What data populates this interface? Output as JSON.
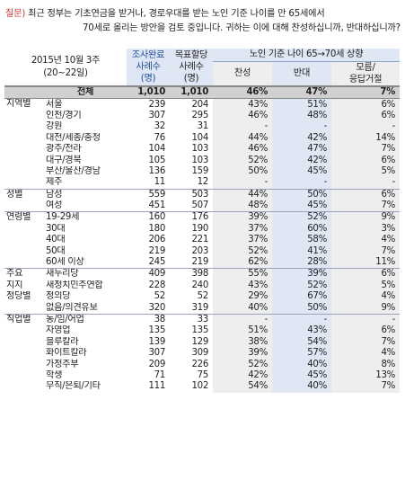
{
  "question": {
    "label": "질문)",
    "line1": "최근 정부는 기초연금을 받거나, 경로우대를 받는 노인 기준 나이를 만 65세에서",
    "line2": "70세로 올리는 방안을 검토 중입니다. 귀하는 이에 대해 찬성하십니까, 반대하십니까?"
  },
  "header": {
    "period_line1": "2015년 10월 3주",
    "period_line2": "(20~22일)",
    "survey_col": "조사완료\n사례수\n(명)",
    "weighted_col": "목표할당\n사례수\n(명)",
    "group_title": "노인 기준 나이 65→70세 상향",
    "agree": "찬성",
    "oppose": "반대",
    "dk": "모름/\n응답거절"
  },
  "rows": [
    {
      "grp": "",
      "label": "전체",
      "n1": "1,010",
      "n2": "1,010",
      "a": "46%",
      "o": "47%",
      "d": "7%",
      "total": true
    },
    {
      "grp": "지역별",
      "label": "서울",
      "n1": "239",
      "n2": "204",
      "a": "43%",
      "o": "51%",
      "d": "6%",
      "start": true
    },
    {
      "grp": "",
      "label": "인천/경기",
      "n1": "307",
      "n2": "295",
      "a": "46%",
      "o": "48%",
      "d": "6%"
    },
    {
      "grp": "",
      "label": "강원",
      "n1": "32",
      "n2": "31",
      "a": "-",
      "o": "-",
      "d": "-"
    },
    {
      "grp": "",
      "label": "대전/세종/충청",
      "n1": "76",
      "n2": "104",
      "a": "44%",
      "o": "42%",
      "d": "14%"
    },
    {
      "grp": "",
      "label": "광주/전라",
      "n1": "104",
      "n2": "103",
      "a": "46%",
      "o": "47%",
      "d": "7%"
    },
    {
      "grp": "",
      "label": "대구/경북",
      "n1": "105",
      "n2": "103",
      "a": "52%",
      "o": "42%",
      "d": "6%"
    },
    {
      "grp": "",
      "label": "부산/울산/경남",
      "n1": "136",
      "n2": "159",
      "a": "50%",
      "o": "45%",
      "d": "5%"
    },
    {
      "grp": "",
      "label": "제주",
      "n1": "11",
      "n2": "12",
      "a": "-",
      "o": "-",
      "d": "-"
    },
    {
      "grp": "성별",
      "label": "남성",
      "n1": "559",
      "n2": "503",
      "a": "44%",
      "o": "50%",
      "d": "6%",
      "start": true
    },
    {
      "grp": "",
      "label": "여성",
      "n1": "451",
      "n2": "507",
      "a": "48%",
      "o": "45%",
      "d": "7%"
    },
    {
      "grp": "연령별",
      "label": "19-29세",
      "n1": "160",
      "n2": "176",
      "a": "39%",
      "o": "52%",
      "d": "9%",
      "start": true
    },
    {
      "grp": "",
      "label": "30대",
      "n1": "180",
      "n2": "190",
      "a": "37%",
      "o": "60%",
      "d": "3%"
    },
    {
      "grp": "",
      "label": "40대",
      "n1": "206",
      "n2": "221",
      "a": "37%",
      "o": "58%",
      "d": "4%"
    },
    {
      "grp": "",
      "label": "50대",
      "n1": "219",
      "n2": "203",
      "a": "52%",
      "o": "41%",
      "d": "7%"
    },
    {
      "grp": "",
      "label": "60세 이상",
      "n1": "245",
      "n2": "219",
      "a": "62%",
      "o": "28%",
      "d": "11%"
    },
    {
      "grp": "주요",
      "label": "새누리당",
      "n1": "409",
      "n2": "398",
      "a": "55%",
      "o": "39%",
      "d": "6%",
      "start": true
    },
    {
      "grp": "지지",
      "label": "새정치민주연합",
      "n1": "228",
      "n2": "240",
      "a": "43%",
      "o": "52%",
      "d": "5%"
    },
    {
      "grp": "정당별",
      "label": "정의당",
      "n1": "52",
      "n2": "52",
      "a": "29%",
      "o": "67%",
      "d": "4%"
    },
    {
      "grp": "",
      "label": "없음/의견유보",
      "n1": "320",
      "n2": "319",
      "a": "40%",
      "o": "50%",
      "d": "9%"
    },
    {
      "grp": "직업별",
      "label": "농/임/어업",
      "n1": "38",
      "n2": "33",
      "a": "-",
      "o": "-",
      "d": "-",
      "start": true
    },
    {
      "grp": "",
      "label": "자영업",
      "n1": "135",
      "n2": "135",
      "a": "51%",
      "o": "43%",
      "d": "6%"
    },
    {
      "grp": "",
      "label": "블루칼라",
      "n1": "139",
      "n2": "129",
      "a": "38%",
      "o": "54%",
      "d": "7%"
    },
    {
      "grp": "",
      "label": "화이트칼라",
      "n1": "307",
      "n2": "309",
      "a": "39%",
      "o": "57%",
      "d": "4%"
    },
    {
      "grp": "",
      "label": "가정주부",
      "n1": "209",
      "n2": "226",
      "a": "52%",
      "o": "40%",
      "d": "8%"
    },
    {
      "grp": "",
      "label": "학생",
      "n1": "71",
      "n2": "75",
      "a": "42%",
      "o": "45%",
      "d": "13%"
    },
    {
      "grp": "",
      "label": "무직/은퇴/기타",
      "n1": "111",
      "n2": "102",
      "a": "54%",
      "o": "40%",
      "d": "7%"
    }
  ]
}
